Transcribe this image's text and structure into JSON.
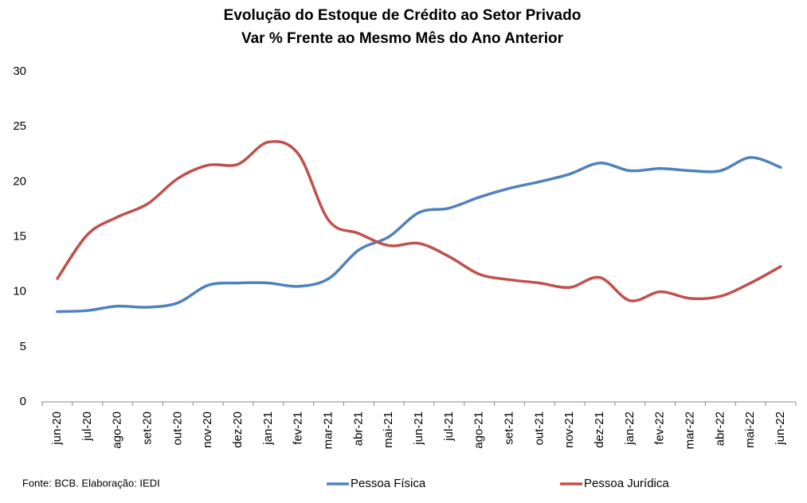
{
  "chart_data": {
    "type": "line",
    "title": "Evolução do Estoque de Crédito ao Setor Privado",
    "subtitle": "Var % Frente ao Mesmo Mês do Ano Anterior",
    "source": "Fonte: BCB. Elaboração: IEDI",
    "categories": [
      "jun-20",
      "jul-20",
      "ago-20",
      "set-20",
      "out-20",
      "nov-20",
      "dez-20",
      "jan-21",
      "fev-21",
      "mar-21",
      "abr-21",
      "mai-21",
      "jun-21",
      "jul-21",
      "ago-21",
      "set-21",
      "out-21",
      "nov-21",
      "dez-21",
      "jan-22",
      "fev-22",
      "mar-22",
      "abr-22",
      "mai-22",
      "jun-22"
    ],
    "series": [
      {
        "name": "Pessoa Física",
        "color": "#4f81bd",
        "values": [
          8.2,
          8.3,
          8.7,
          8.6,
          9.0,
          10.6,
          10.8,
          10.8,
          10.5,
          11.2,
          13.8,
          15.0,
          17.2,
          17.6,
          18.6,
          19.4,
          20.0,
          20.7,
          21.7,
          21.0,
          21.2,
          21.0,
          21.0,
          22.2,
          21.3
        ]
      },
      {
        "name": "Pessoa Jurídica",
        "color": "#c0504d",
        "values": [
          11.2,
          15.2,
          16.8,
          18.0,
          20.3,
          21.5,
          21.6,
          23.6,
          22.5,
          16.5,
          15.3,
          14.2,
          14.4,
          13.2,
          11.6,
          11.1,
          10.8,
          10.4,
          11.3,
          9.2,
          10.0,
          9.4,
          9.6,
          10.8,
          12.3
        ]
      }
    ],
    "ylim": [
      0,
      30
    ],
    "yticks": [
      0,
      5,
      10,
      15,
      20,
      25,
      30
    ],
    "grid": false,
    "legend": "bottom"
  }
}
